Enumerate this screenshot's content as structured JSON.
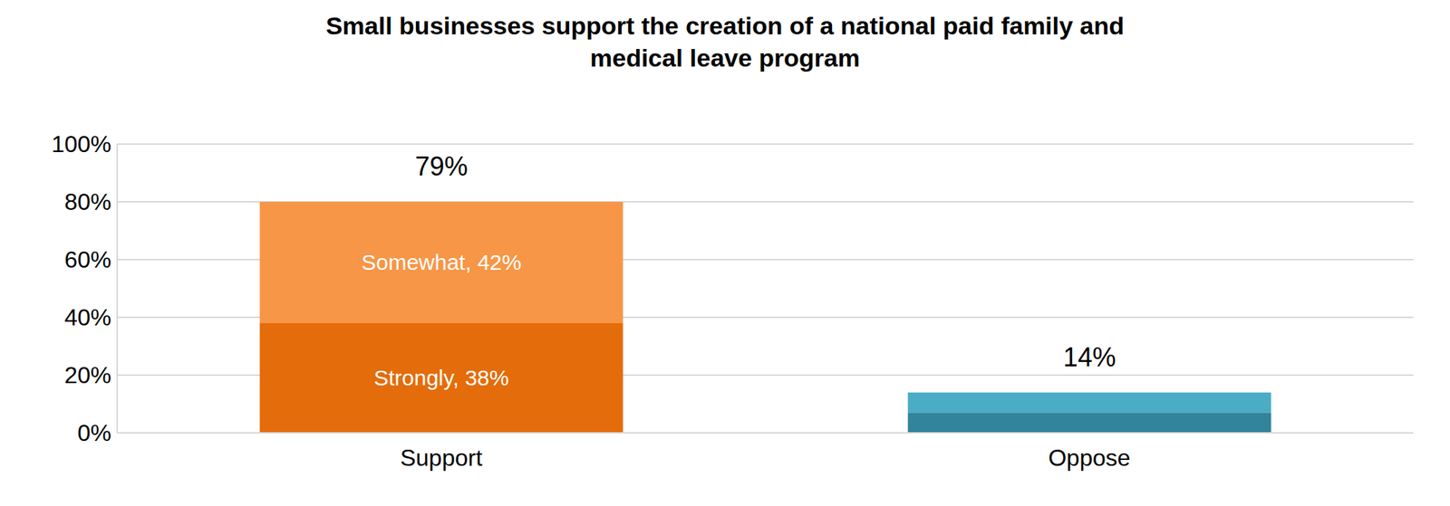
{
  "chart_data": {
    "type": "bar",
    "title": "Small businesses support the creation of a national paid family and medical leave program",
    "categories": [
      "Support",
      "Oppose"
    ],
    "stacked": true,
    "orientation": "vertical",
    "grid": true,
    "data_labels": true,
    "series": [
      {
        "name": "Strongly",
        "colors": [
          "#e46c0a",
          "#31849b"
        ],
        "values": [
          38,
          7
        ],
        "value_labels": [
          "Strongly, 38%",
          null
        ]
      },
      {
        "name": "Somewhat",
        "colors": [
          "#f79646",
          "#4bacc6"
        ],
        "values": [
          42,
          7
        ],
        "value_labels": [
          "Somewhat, 42%",
          null
        ]
      }
    ],
    "totals": [
      79,
      14
    ],
    "total_labels": [
      "79%",
      "14%"
    ],
    "ylim": [
      0,
      100
    ],
    "yticks": [
      {
        "value": 0,
        "label": "0%"
      },
      {
        "value": 20,
        "label": "20%"
      },
      {
        "value": 40,
        "label": "40%"
      },
      {
        "value": 60,
        "label": "60%"
      },
      {
        "value": 80,
        "label": "80%"
      },
      {
        "value": 100,
        "label": "100%"
      }
    ]
  }
}
